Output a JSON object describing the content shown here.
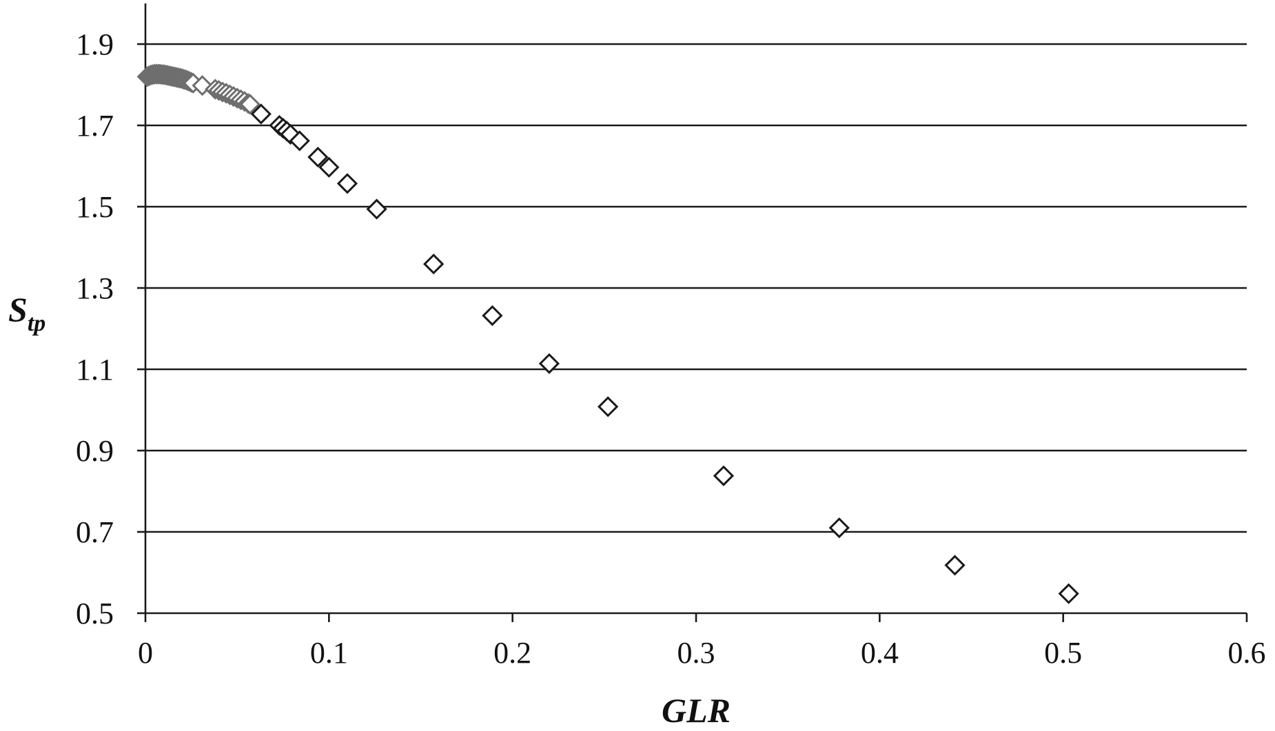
{
  "chart_data": {
    "type": "scatter",
    "title": "",
    "xlabel": "GLR",
    "ylabel_main": "S",
    "ylabel_sub": "tp",
    "xlim": [
      0,
      0.6
    ],
    "ylim": [
      0.5,
      2.0
    ],
    "x_ticks": [
      0,
      0.1,
      0.2,
      0.3,
      0.4,
      0.5,
      0.6
    ],
    "x_tick_labels": [
      "0",
      "0.1",
      "0.2",
      "0.3",
      "0.4",
      "0.5",
      "0.6"
    ],
    "y_ticks": [
      0.5,
      0.7,
      0.9,
      1.1,
      1.3,
      1.5,
      1.7,
      1.9
    ],
    "y_tick_labels": [
      "0.5",
      "0.7",
      "0.9",
      "1.1",
      "1.3",
      "1.5",
      "1.7",
      "1.9"
    ],
    "grid": "horizontal",
    "marker": "diamond-open",
    "colors": {
      "marker_dense": "#6e6e6e",
      "marker": "#1a1a1a",
      "axis": "#1a1a1a"
    },
    "series": [
      {
        "x": [
          0.001,
          0.002,
          0.003,
          0.004,
          0.005,
          0.006,
          0.007,
          0.008,
          0.009,
          0.01,
          0.011,
          0.012,
          0.013,
          0.014,
          0.015,
          0.016,
          0.017,
          0.018,
          0.019,
          0.02,
          0.021,
          0.022,
          0.023,
          0.024,
          0.025,
          0.026,
          0.031,
          0.038,
          0.04,
          0.042,
          0.044,
          0.046,
          0.048,
          0.05,
          0.052,
          0.054,
          0.056,
          0.057,
          0.063,
          0.073,
          0.075,
          0.077,
          0.079,
          0.084,
          0.094,
          0.1,
          0.11,
          0.126,
          0.157,
          0.189,
          0.22,
          0.252,
          0.315,
          0.378,
          0.441,
          0.503
        ],
        "y": [
          1.82,
          1.822,
          1.824,
          1.825,
          1.826,
          1.826,
          1.826,
          1.826,
          1.825,
          1.825,
          1.824,
          1.823,
          1.822,
          1.821,
          1.82,
          1.819,
          1.818,
          1.817,
          1.816,
          1.815,
          1.813,
          1.812,
          1.81,
          1.808,
          1.806,
          1.804,
          1.798,
          1.789,
          1.786,
          1.782,
          1.779,
          1.775,
          1.771,
          1.767,
          1.763,
          1.759,
          1.754,
          1.752,
          1.728,
          1.7,
          1.693,
          1.686,
          1.678,
          1.662,
          1.622,
          1.597,
          1.557,
          1.494,
          1.359,
          1.232,
          1.114,
          1.008,
          0.838,
          0.71,
          0.618,
          0.548
        ]
      }
    ]
  }
}
